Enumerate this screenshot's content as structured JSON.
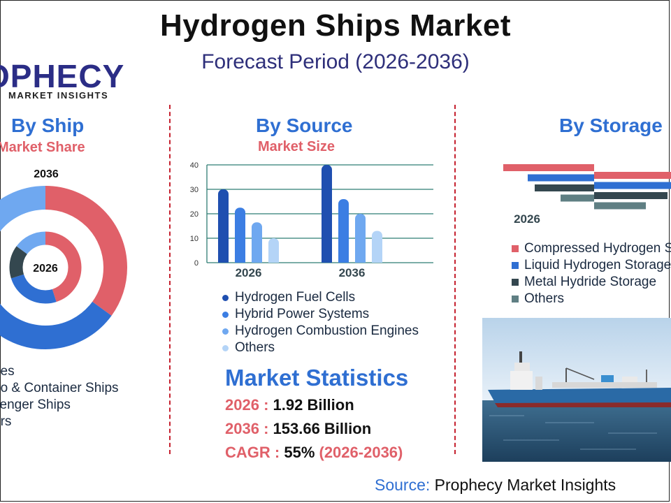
{
  "header": {
    "title": "Hydrogen Ships Market",
    "subtitle": "Forecast Period (2026-2036)"
  },
  "logo": {
    "main": "OPHECY",
    "sub": "MARKET INSIGHTS"
  },
  "colors": {
    "accent_blue": "#2f6fd2",
    "accent_red": "#e06069",
    "navy": "#2e2f7a",
    "dark_slate": "#34474f",
    "light_blue": "#6fa8f0",
    "teal_gray": "#5f7f83"
  },
  "chart_data": [
    {
      "type": "donut",
      "heading": "By Ship",
      "subheading": "Market Share",
      "outer_label": "2036",
      "inner_label": "2026",
      "legend": [
        "ries",
        "go & Container Ships",
        "senger Ships",
        "ers"
      ],
      "legend_colors": [
        "#e06069",
        "#2f6fd2",
        "#34474f",
        "#6fa8f0"
      ],
      "rings": [
        {
          "year": "2036",
          "values": [
            35,
            30,
            20,
            15
          ]
        },
        {
          "year": "2026",
          "values": [
            45,
            25,
            15,
            15
          ]
        }
      ]
    },
    {
      "type": "bar",
      "heading": "By Source",
      "subheading": "Market Size",
      "categories": [
        "2026",
        "2036"
      ],
      "ylim": [
        0,
        40
      ],
      "yticks": [
        "0",
        "10",
        "20",
        "30",
        "40"
      ],
      "grid": true,
      "series": [
        {
          "name": "Hydrogen Fuel Cells",
          "color": "#1f4fb0",
          "values": [
            30,
            40
          ]
        },
        {
          "name": "Hybrid Power Systems",
          "color": "#3c7ee3",
          "values": [
            22.5,
            26
          ]
        },
        {
          "name": "Hydrogen Combustion Engines",
          "color": "#6fa8f0",
          "values": [
            16.5,
            20
          ]
        },
        {
          "name": "Others",
          "color": "#b4d4f7",
          "values": [
            10,
            13
          ]
        }
      ]
    },
    {
      "type": "bar",
      "orientation": "horizontal",
      "heading": "By Storage",
      "category_label": "2026",
      "legend": [
        "Compressed Hydrogen Sto",
        "Liquid Hydrogen Storage",
        "Metal Hydride Storage",
        "Others"
      ],
      "series": [
        {
          "name": "Compressed Hydrogen Storage",
          "color": "#e06069",
          "values": [
            130,
            110
          ]
        },
        {
          "name": "Liquid Hydrogen Storage",
          "color": "#2f6fd2",
          "values": [
            95,
            115
          ]
        },
        {
          "name": "Metal Hydride Storage",
          "color": "#34474f",
          "values": [
            85,
            105
          ]
        },
        {
          "name": "Others",
          "color": "#5f7f83",
          "values": [
            48,
            74
          ]
        }
      ]
    }
  ],
  "stats": {
    "title": "Market Statistics",
    "rows": [
      {
        "key": "2026",
        "sep": " : ",
        "value": "1.92 Billion",
        "paren": ""
      },
      {
        "key": "2036",
        "sep": " : ",
        "value": "153.66 Billion",
        "paren": ""
      },
      {
        "key": "CAGR",
        "sep": " : ",
        "value": "55% ",
        "paren": "(2026-2036)"
      }
    ]
  },
  "source": {
    "label": "Source: ",
    "value": "Prophecy Market Insights"
  },
  "photo": {
    "icon": "ship-photo"
  }
}
